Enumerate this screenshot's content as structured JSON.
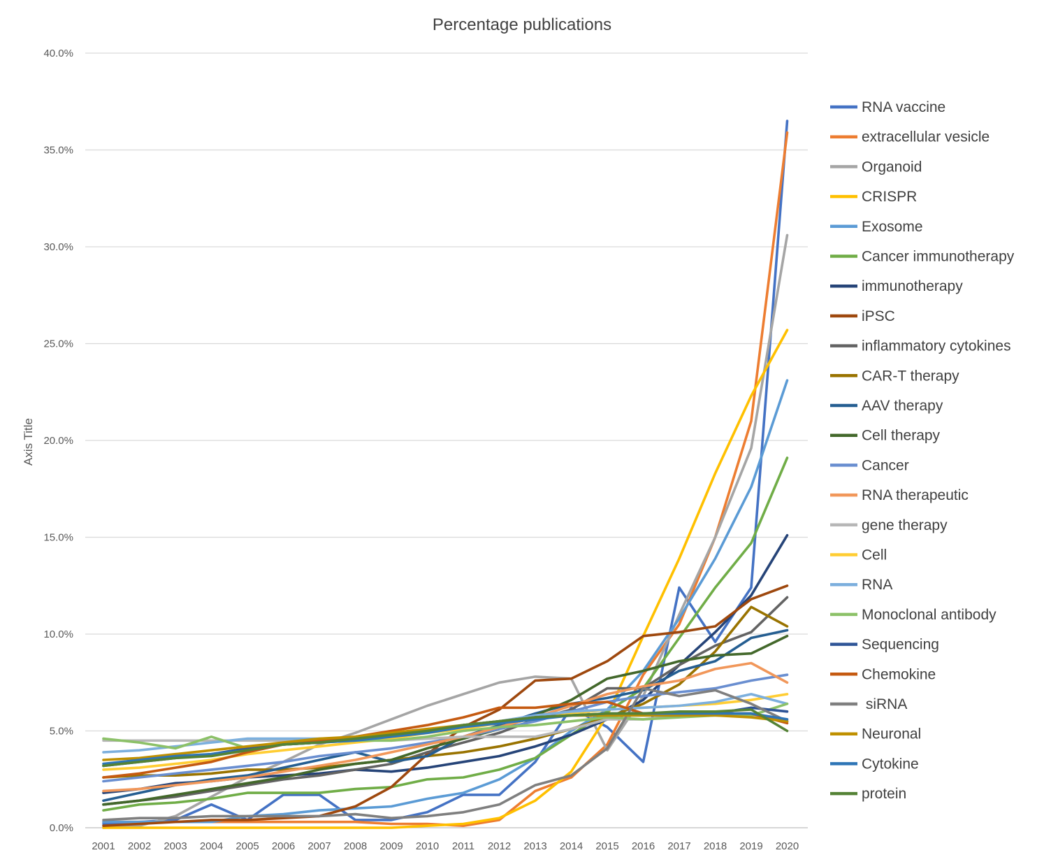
{
  "chart_data": {
    "type": "line",
    "title": "Percentage publications",
    "xlabel": "",
    "ylabel": "Axis Title",
    "ylim": [
      0,
      40
    ],
    "y_ticks": [
      "0.0%",
      "5.0%",
      "10.0%",
      "15.0%",
      "20.0%",
      "25.0%",
      "30.0%",
      "35.0%",
      "40.0%"
    ],
    "y_tick_values": [
      0,
      5,
      10,
      15,
      20,
      25,
      30,
      35,
      40
    ],
    "grid": true,
    "legend_position": "right",
    "categories": [
      "2001",
      "2002",
      "2003",
      "2004",
      "2005",
      "2006",
      "2007",
      "2008",
      "2009",
      "2010",
      "2011",
      "2012",
      "2013",
      "2014",
      "2015",
      "2016",
      "2017",
      "2018",
      "2019",
      "2020"
    ],
    "series": [
      {
        "name": "RNA vaccine",
        "color": "#4472C4",
        "values": [
          0.2,
          0.3,
          0.4,
          1.2,
          0.4,
          1.7,
          1.7,
          0.4,
          0.4,
          0.8,
          1.7,
          1.7,
          3.4,
          6.2,
          5.2,
          3.4,
          12.4,
          9.6,
          12.4,
          36.5
        ]
      },
      {
        "name": "extracellular vesicle",
        "color": "#ED7D31",
        "values": [
          0.3,
          0.3,
          0.3,
          0.3,
          0.3,
          0.3,
          0.3,
          0.3,
          0.2,
          0.2,
          0.1,
          0.4,
          1.9,
          2.6,
          4.3,
          7.9,
          10.5,
          15.0,
          21.0,
          35.9
        ]
      },
      {
        "name": "Organoid",
        "color": "#A5A5A5",
        "values": [
          0.0,
          0.1,
          0.6,
          1.6,
          2.6,
          3.4,
          4.3,
          4.9,
          5.6,
          6.3,
          6.9,
          7.5,
          7.8,
          7.7,
          4.0,
          6.8,
          11.0,
          15.0,
          19.6,
          30.6
        ]
      },
      {
        "name": "CRISPR",
        "color": "#FFC000",
        "values": [
          0.0,
          0.0,
          0.0,
          0.0,
          0.0,
          0.0,
          0.0,
          0.0,
          0.0,
          0.1,
          0.2,
          0.5,
          1.4,
          2.9,
          5.8,
          9.9,
          13.9,
          18.3,
          22.3,
          25.7
        ]
      },
      {
        "name": "Exosome",
        "color": "#5B9BD5",
        "values": [
          0.3,
          0.3,
          0.3,
          0.3,
          0.6,
          0.7,
          0.9,
          1.0,
          1.1,
          1.5,
          1.8,
          2.5,
          3.6,
          5.0,
          6.1,
          8.1,
          10.8,
          13.9,
          17.6,
          23.1
        ]
      },
      {
        "name": "Cancer immunotherapy",
        "color": "#70AD47",
        "values": [
          0.9,
          1.2,
          1.3,
          1.5,
          1.8,
          1.8,
          1.8,
          2.0,
          2.1,
          2.5,
          2.6,
          3.0,
          3.6,
          4.8,
          6.0,
          7.2,
          9.8,
          12.4,
          14.7,
          19.1
        ]
      },
      {
        "name": "immunotherapy",
        "color": "#264478",
        "values": [
          1.8,
          2.0,
          2.3,
          2.4,
          2.6,
          2.7,
          2.8,
          3.0,
          2.9,
          3.1,
          3.4,
          3.7,
          4.2,
          4.8,
          5.6,
          6.6,
          8.4,
          10.1,
          12.0,
          15.1
        ]
      },
      {
        "name": "iPSC",
        "color": "#9E480E",
        "values": [
          0.1,
          0.2,
          0.3,
          0.4,
          0.4,
          0.5,
          0.6,
          1.1,
          2.1,
          3.8,
          5.2,
          6.1,
          7.6,
          7.7,
          8.6,
          9.9,
          10.1,
          10.4,
          11.8,
          12.5
        ]
      },
      {
        "name": "inflammatory cytokines",
        "color": "#636363",
        "values": [
          1.2,
          1.4,
          1.6,
          1.9,
          2.2,
          2.5,
          2.7,
          3.0,
          3.3,
          3.9,
          4.4,
          4.9,
          5.6,
          6.1,
          7.2,
          7.2,
          8.4,
          9.4,
          10.1,
          11.9
        ]
      },
      {
        "name": "CAR-T therapy",
        "color": "#997300",
        "values": [
          2.6,
          2.7,
          2.7,
          2.8,
          3.0,
          3.0,
          3.1,
          3.3,
          3.5,
          3.7,
          3.9,
          4.2,
          4.6,
          5.1,
          5.7,
          6.4,
          7.4,
          9.1,
          11.4,
          10.4
        ]
      },
      {
        "name": "AAV therapy",
        "color": "#255E91",
        "values": [
          1.4,
          1.8,
          2.2,
          2.5,
          2.7,
          3.1,
          3.5,
          3.9,
          3.4,
          3.7,
          4.7,
          5.3,
          5.9,
          6.4,
          6.7,
          7.1,
          8.1,
          8.6,
          9.8,
          10.2
        ]
      },
      {
        "name": "Cell therapy",
        "color": "#43682B",
        "values": [
          1.2,
          1.4,
          1.7,
          2.0,
          2.3,
          2.6,
          3.0,
          3.3,
          3.5,
          4.1,
          4.6,
          5.1,
          5.8,
          6.6,
          7.7,
          8.1,
          8.6,
          8.9,
          9.0,
          9.9
        ]
      },
      {
        "name": "Cancer",
        "color": "#698ED0",
        "values": [
          2.4,
          2.6,
          2.8,
          3.0,
          3.2,
          3.4,
          3.7,
          3.9,
          4.1,
          4.4,
          4.7,
          5.1,
          5.5,
          6.0,
          6.5,
          6.8,
          7.0,
          7.2,
          7.6,
          7.9
        ]
      },
      {
        "name": "RNA therapeutic",
        "color": "#F1975A",
        "values": [
          1.9,
          2.0,
          2.2,
          2.4,
          2.6,
          2.9,
          3.2,
          3.5,
          3.9,
          4.3,
          4.7,
          5.2,
          5.7,
          6.3,
          6.9,
          7.3,
          7.6,
          8.2,
          8.5,
          7.5
        ]
      },
      {
        "name": "gene therapy",
        "color": "#B7B7B7",
        "values": [
          4.5,
          4.5,
          4.5,
          4.5,
          4.5,
          4.5,
          4.5,
          4.6,
          4.5,
          4.6,
          4.7,
          4.7,
          4.7,
          5.1,
          5.6,
          5.6,
          5.8,
          5.8,
          5.8,
          5.5
        ]
      },
      {
        "name": "Cell",
        "color": "#FFCD33",
        "values": [
          3.0,
          3.1,
          3.3,
          3.5,
          3.8,
          4.0,
          4.2,
          4.4,
          4.6,
          4.9,
          5.1,
          5.4,
          5.6,
          5.9,
          6.1,
          6.2,
          6.3,
          6.4,
          6.6,
          6.9
        ]
      },
      {
        "name": "RNA",
        "color": "#7CAFDD",
        "values": [
          3.9,
          4.0,
          4.2,
          4.4,
          4.6,
          4.6,
          4.6,
          4.6,
          4.8,
          5.0,
          5.3,
          5.5,
          5.8,
          6.0,
          6.1,
          6.2,
          6.3,
          6.5,
          6.9,
          6.4
        ]
      },
      {
        "name": "Monoclonal antibody",
        "color": "#8CC168",
        "values": [
          4.6,
          4.4,
          4.1,
          4.7,
          4.1,
          4.3,
          4.4,
          4.5,
          4.5,
          4.7,
          5.0,
          5.2,
          5.3,
          5.5,
          5.7,
          5.6,
          5.7,
          5.8,
          5.8,
          6.4
        ]
      },
      {
        "name": "Sequencing",
        "color": "#2F5597",
        "values": [
          3.2,
          3.4,
          3.6,
          3.8,
          4.1,
          4.3,
          4.4,
          4.6,
          4.8,
          5.0,
          5.3,
          5.5,
          5.7,
          5.8,
          5.8,
          5.8,
          5.8,
          5.9,
          6.2,
          6.0
        ]
      },
      {
        "name": "Chemokine",
        "color": "#C55A11",
        "values": [
          2.6,
          2.8,
          3.1,
          3.4,
          3.9,
          4.3,
          4.5,
          4.7,
          5.0,
          5.3,
          5.7,
          6.2,
          6.2,
          6.4,
          6.5,
          5.9,
          5.9,
          5.9,
          5.9,
          5.4
        ]
      },
      {
        "name": " siRNA",
        "color": "#7F7F7F",
        "values": [
          0.4,
          0.5,
          0.5,
          0.6,
          0.6,
          0.6,
          0.6,
          0.7,
          0.5,
          0.6,
          0.8,
          1.2,
          2.2,
          2.7,
          4.1,
          7.2,
          6.8,
          7.1,
          6.4,
          5.5
        ]
      },
      {
        "name": "Neuronal",
        "color": "#BF9000",
        "values": [
          3.5,
          3.6,
          3.8,
          4.0,
          4.2,
          4.4,
          4.6,
          4.7,
          4.9,
          5.1,
          5.3,
          5.5,
          5.7,
          5.8,
          5.8,
          5.8,
          5.8,
          5.8,
          5.7,
          5.5
        ]
      },
      {
        "name": "Cytokine",
        "color": "#2E75B6",
        "values": [
          3.3,
          3.5,
          3.7,
          3.8,
          4.0,
          4.3,
          4.4,
          4.5,
          4.7,
          4.9,
          5.2,
          5.4,
          5.6,
          5.8,
          5.9,
          5.9,
          5.9,
          5.9,
          5.9,
          5.6
        ]
      },
      {
        "name": "protein",
        "color": "#548235",
        "values": [
          3.2,
          3.4,
          3.6,
          3.7,
          4.0,
          4.3,
          4.4,
          4.6,
          4.8,
          5.0,
          5.3,
          5.5,
          5.7,
          5.8,
          5.9,
          5.9,
          6.0,
          6.0,
          6.1,
          5.0
        ]
      }
    ]
  }
}
